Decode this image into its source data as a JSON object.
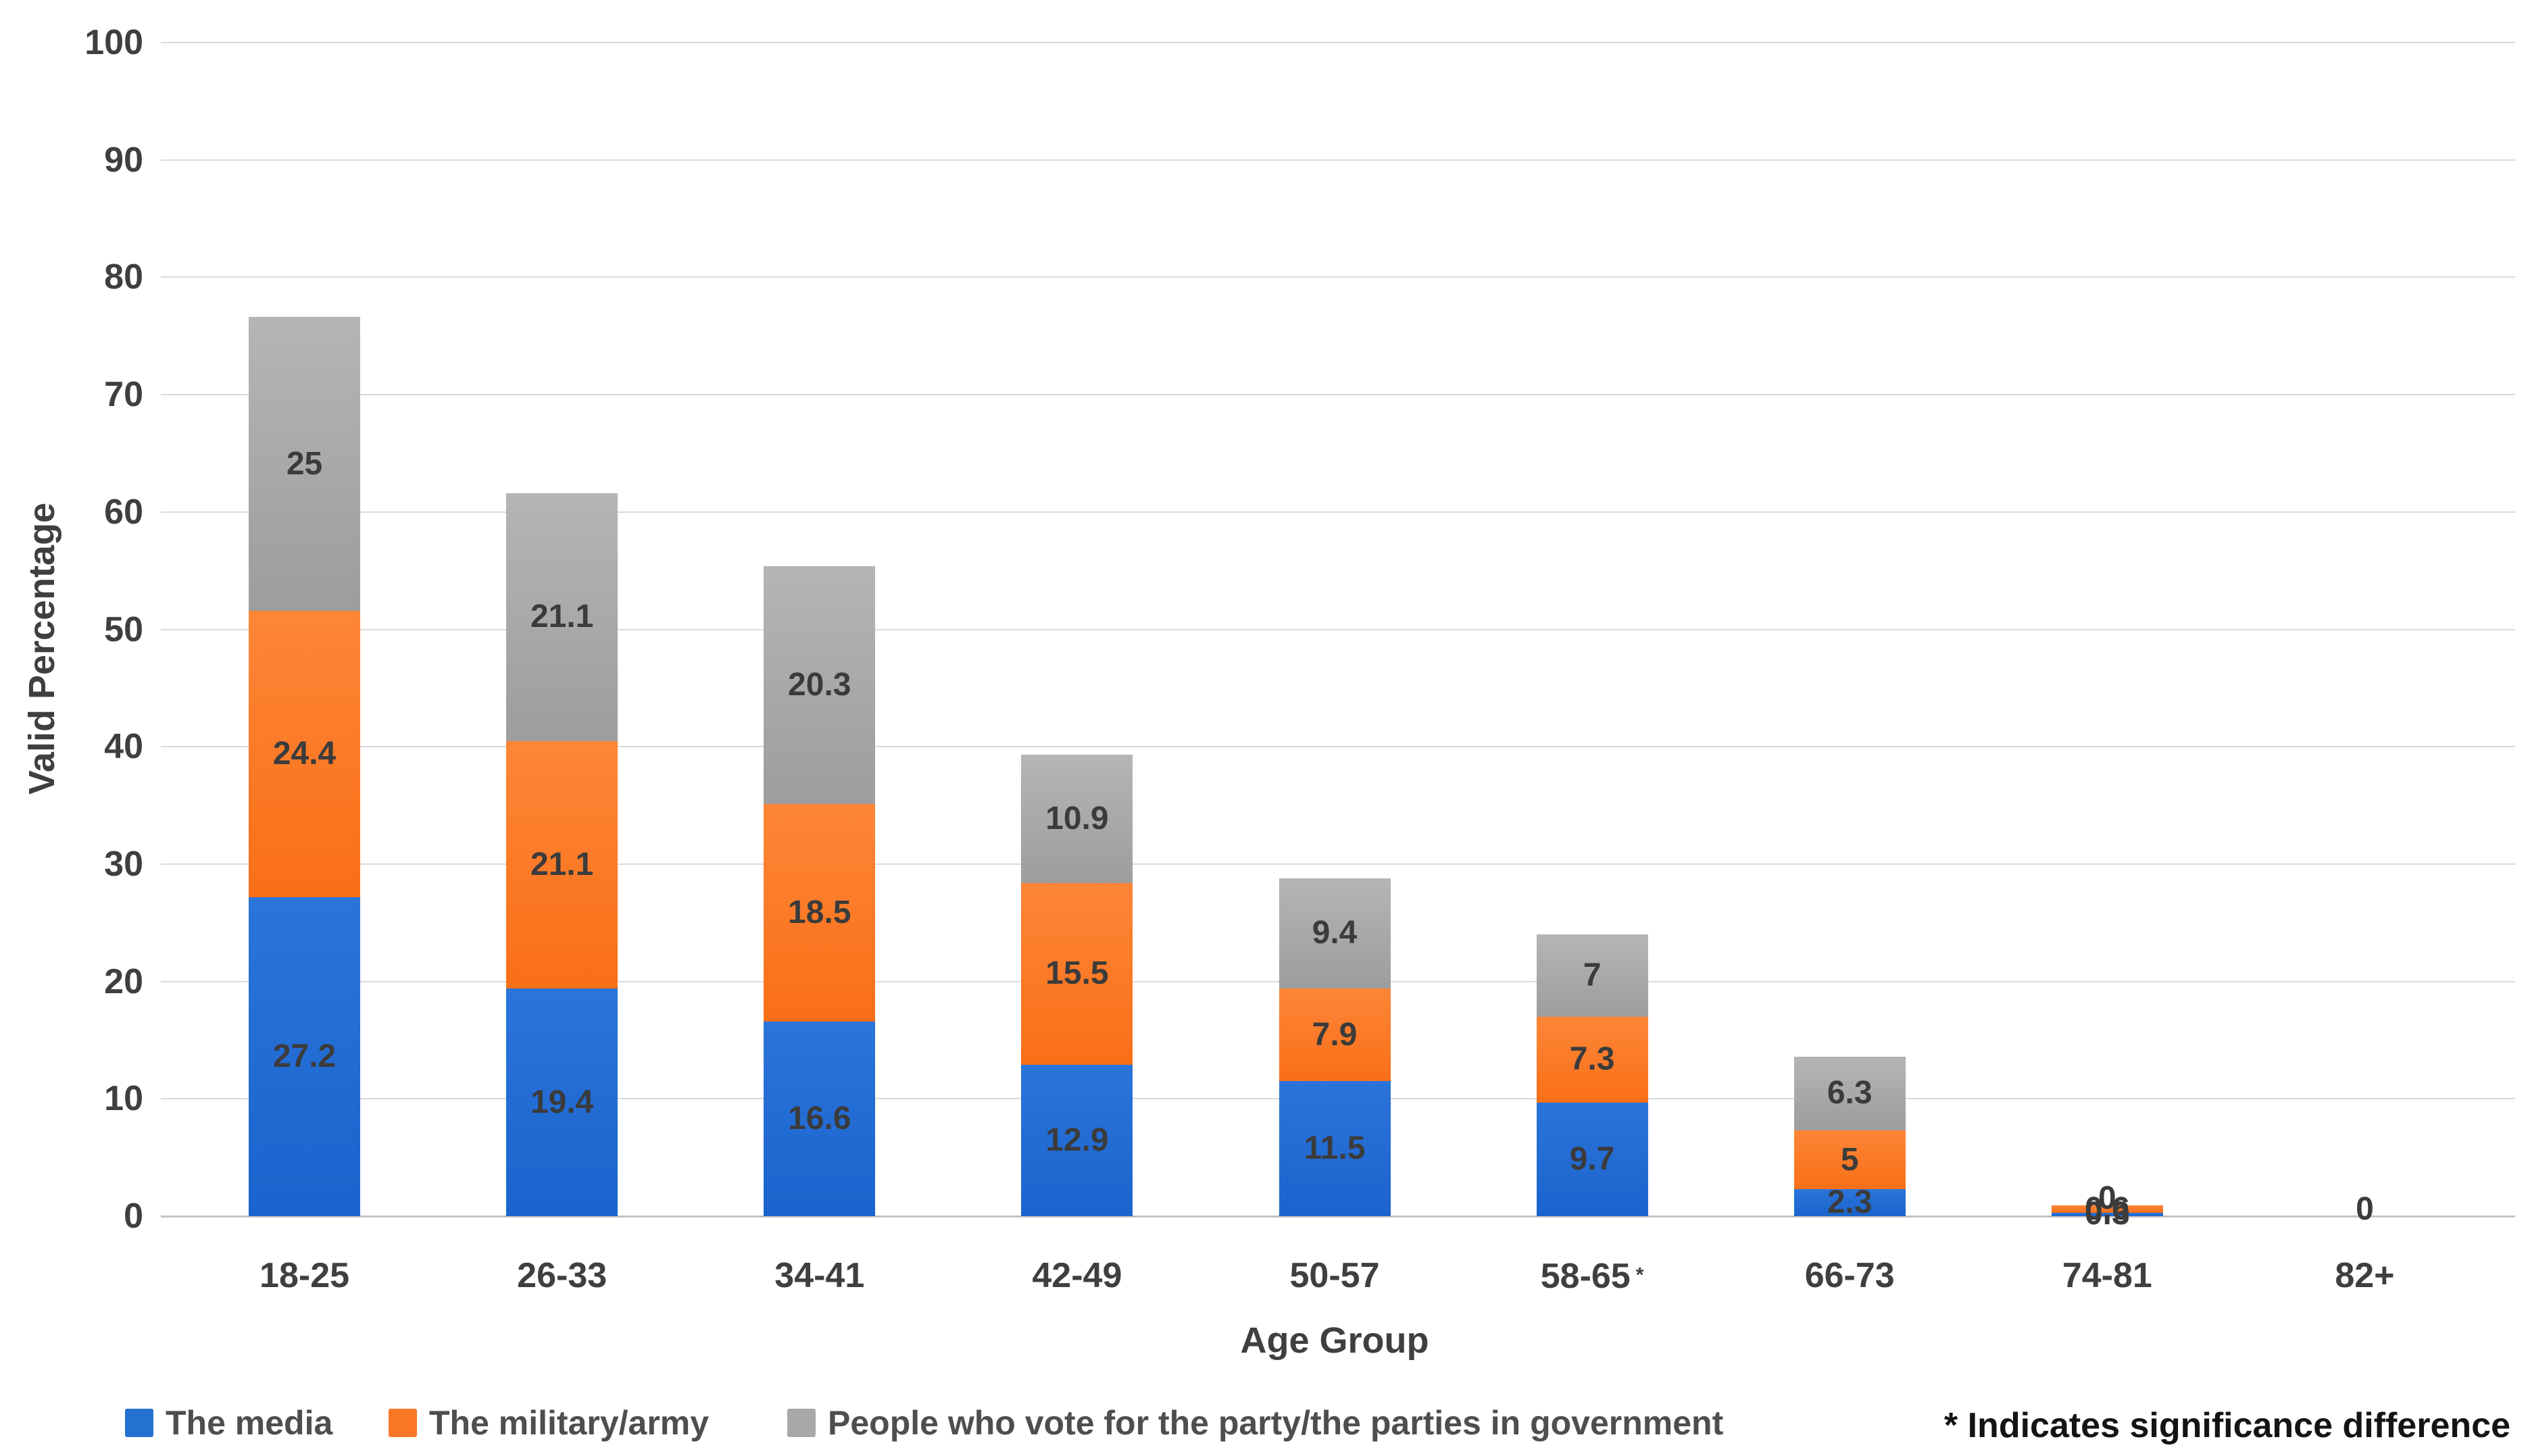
{
  "chart_data": {
    "type": "bar",
    "stacked": true,
    "title": "",
    "xlabel": "Age Group",
    "ylabel": "Valid Percentage",
    "ylim": [
      0,
      100
    ],
    "yticks": [
      0,
      10,
      20,
      30,
      40,
      50,
      60,
      70,
      80,
      90,
      100
    ],
    "grid": "horizontal",
    "legend_position": "bottom",
    "note": "* Indicates significance difference",
    "categories": [
      "18-25",
      "26-33",
      "34-41",
      "42-49",
      "50-57",
      "58-65*",
      "66-73",
      "74-81",
      "82+"
    ],
    "series": [
      {
        "name": "The media",
        "color": "#2371d1",
        "values": [
          27.2,
          19.4,
          16.6,
          12.9,
          11.5,
          9.7,
          2.3,
          0.3,
          0
        ],
        "labels": [
          "27.2",
          "19.4",
          "16.6",
          "12.9",
          "11.5",
          "9.7",
          "2.3",
          "0.3",
          ""
        ]
      },
      {
        "name": "The military/army",
        "color": "#fb7728",
        "values": [
          24.4,
          21.1,
          18.5,
          15.5,
          7.9,
          7.3,
          5,
          0.6,
          0
        ],
        "labels": [
          "24.4",
          "21.1",
          "18.5",
          "15.5",
          "7.9",
          "7.3",
          "5",
          "0.6",
          ""
        ]
      },
      {
        "name": "People who vote for the party/the parties in government",
        "color": "#a8a8a8",
        "values": [
          25,
          21.1,
          20.3,
          10.9,
          9.4,
          7,
          6.3,
          0,
          0
        ],
        "labels": [
          "25",
          "21.1",
          "20.3",
          "10.9",
          "9.4",
          "7",
          "6.3",
          "0",
          "0"
        ]
      }
    ]
  }
}
